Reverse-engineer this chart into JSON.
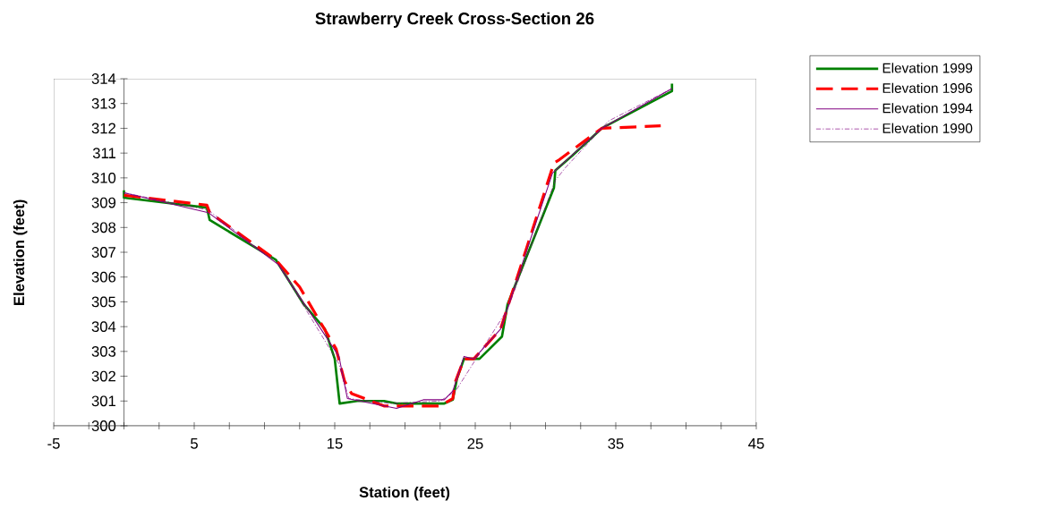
{
  "chart_data": {
    "type": "line",
    "title": "Strawberry Creek Cross-Section 26",
    "xlabel": "Station (feet)",
    "ylabel": "Elevation (feet)",
    "xlim": [
      -5,
      45
    ],
    "ylim": [
      300,
      314
    ],
    "xticks": [
      -5,
      {
        "value": -2.5,
        "label": null
      },
      {
        "value": 0,
        "label": null
      },
      {
        "value": 2.5,
        "label": null
      },
      5,
      {
        "value": 7.5,
        "label": null
      },
      {
        "value": 10,
        "label": null
      },
      {
        "value": 12.5,
        "label": null
      },
      15,
      {
        "value": 17.5,
        "label": null
      },
      {
        "value": 20,
        "label": null
      },
      {
        "value": 22.5,
        "label": null
      },
      25,
      {
        "value": 27.5,
        "label": null
      },
      {
        "value": 30,
        "label": null
      },
      {
        "value": 32.5,
        "label": null
      },
      35,
      {
        "value": 37.5,
        "label": null
      },
      {
        "value": 40,
        "label": null
      },
      {
        "value": 42.5,
        "label": null
      },
      45
    ],
    "yticks": [
      300,
      301,
      302,
      303,
      304,
      305,
      306,
      307,
      308,
      309,
      310,
      311,
      312,
      313,
      314
    ],
    "legend": "top right",
    "grid": false,
    "series": [
      {
        "name": "Elevation 1999",
        "color": "#008000",
        "line_style": "solid",
        "x": [
          0,
          0,
          5.9,
          6.1,
          10.8,
          12.8,
          14.3,
          15.0,
          15.35,
          16.6,
          18.5,
          19.4,
          21.3,
          22.8,
          23.4,
          23.7,
          24.2,
          25.3,
          26.9,
          27.3,
          30.6,
          30.7,
          31.9,
          34.0,
          39.0,
          39.0
        ],
        "values": [
          309.5,
          309.2,
          308.8,
          308.3,
          306.7,
          304.9,
          303.9,
          302.7,
          300.9,
          301.0,
          301.0,
          300.9,
          300.9,
          300.9,
          301.05,
          301.9,
          302.7,
          302.7,
          303.6,
          304.9,
          309.6,
          310.3,
          310.9,
          312.0,
          313.5,
          313.8
        ]
      },
      {
        "name": "Elevation 1996",
        "color": "#ff0000",
        "line_style": "dashed",
        "x": [
          0,
          5.9,
          6.1,
          10.8,
          12.5,
          15.1,
          15.7,
          16.2,
          18.5,
          22.5,
          23.4,
          23.6,
          24.2,
          24.9,
          26.8,
          30.6,
          30.9,
          34.0,
          38.2
        ],
        "values": [
          309.3,
          308.9,
          308.6,
          306.7,
          305.6,
          303.1,
          301.8,
          301.3,
          300.8,
          300.8,
          301.1,
          301.8,
          302.7,
          302.7,
          303.9,
          310.6,
          310.7,
          312.0,
          312.1
        ]
      },
      {
        "name": "Elevation 1994",
        "color": "#800080",
        "line_style": "solid",
        "x": [
          0,
          6.0,
          11.0,
          15.3,
          15.9,
          19.4,
          21.3,
          22.8,
          23.4,
          24.2,
          24.9,
          26.8,
          30.5,
          34.0,
          39.0
        ],
        "values": [
          309.4,
          308.6,
          306.5,
          302.8,
          301.1,
          300.7,
          301.05,
          301.05,
          301.4,
          302.8,
          302.7,
          303.9,
          310.2,
          312.0,
          313.6
        ]
      },
      {
        "name": "Elevation 1990",
        "color": "#800080",
        "line_style": "dotted",
        "x": [
          0,
          6.0,
          11.0,
          15.3,
          16.0,
          19.0,
          22.5,
          23.6,
          27.3,
          30.7,
          31.4,
          34.5,
          39.0
        ],
        "values": [
          309.4,
          308.7,
          306.5,
          302.5,
          301.1,
          300.9,
          301.0,
          301.4,
          304.7,
          309.9,
          310.4,
          312.3,
          313.6
        ]
      }
    ]
  }
}
